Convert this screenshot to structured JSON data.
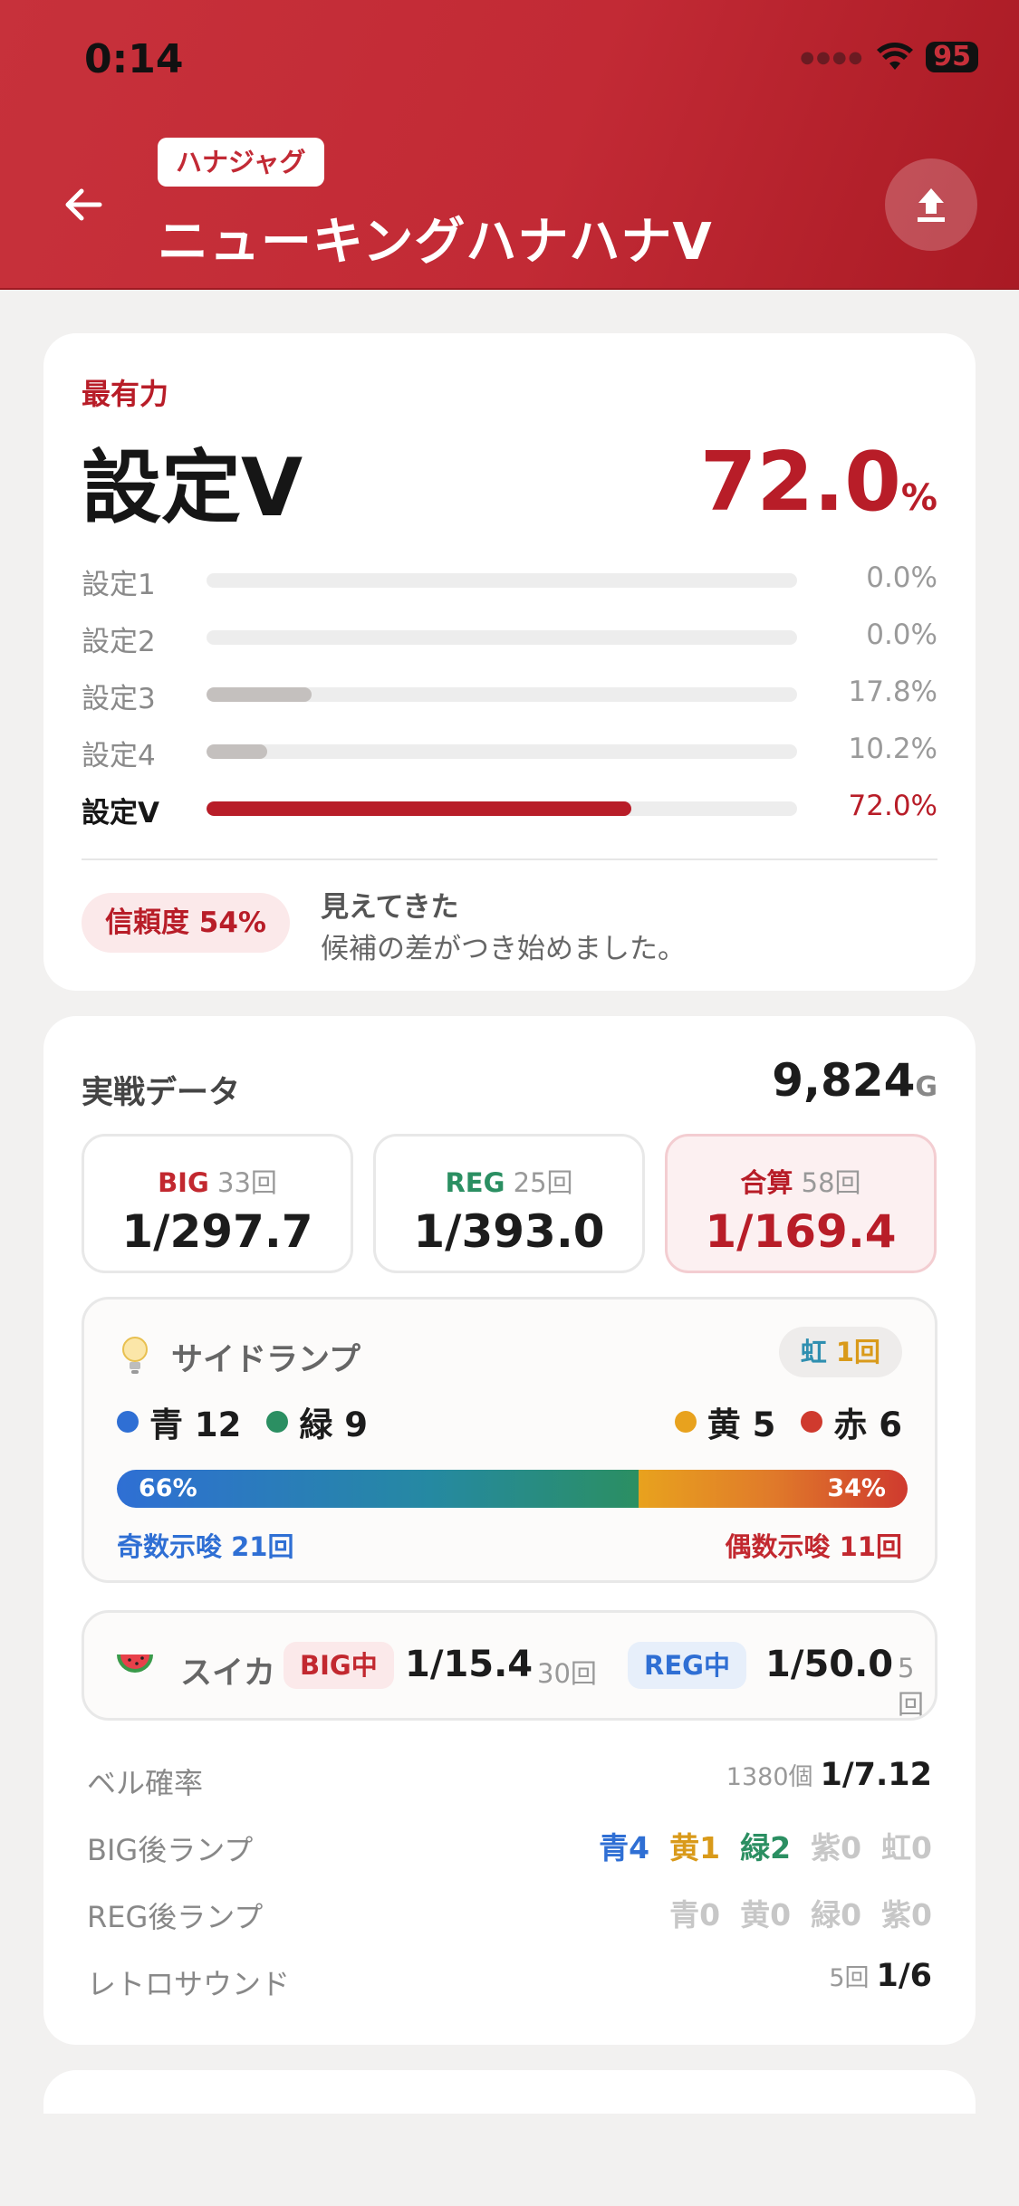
{
  "status": {
    "time": "0:14",
    "battery": "95"
  },
  "header": {
    "tag": "ハナジャグ",
    "title": "ニューキングハナハナV"
  },
  "estimate": {
    "label": "最有力",
    "top_setting": "設定V",
    "top_percent": "72.0",
    "percent_unit": "%",
    "settings": [
      {
        "label": "設定1",
        "percent": 0.0,
        "display": "0.0%"
      },
      {
        "label": "設定2",
        "percent": 0.0,
        "display": "0.0%"
      },
      {
        "label": "設定3",
        "percent": 17.8,
        "display": "17.8%"
      },
      {
        "label": "設定4",
        "percent": 10.2,
        "display": "10.2%"
      },
      {
        "label": "設定V",
        "percent": 72.0,
        "display": "72.0%"
      }
    ],
    "reliability_badge": "信頼度 54%",
    "reliability_title": "見えてきた",
    "reliability_desc": "候補の差がつき始めました。"
  },
  "stats": {
    "section_title": "実戦データ",
    "games": "9,824",
    "games_unit": "G",
    "big": {
      "name": "BIG",
      "count": "33回",
      "value": "1/297.7"
    },
    "reg": {
      "name": "REG",
      "count": "25回",
      "value": "1/393.0"
    },
    "total": {
      "name": "合算",
      "count": "58回",
      "value": "1/169.4"
    }
  },
  "side_lamp": {
    "title": "サイドランプ",
    "rainbow_label": "虹",
    "rainbow_count": "1回",
    "blue": "青 12",
    "green": "緑 9",
    "yellow": "黄 5",
    "red": "赤 6",
    "odd_percent": "66%",
    "even_percent": "34%",
    "odd_hint": "奇数示唆 21回",
    "even_hint": "偶数示唆 11回",
    "colors": {
      "blue": "#2f6fd4",
      "green": "#2b8f62",
      "yellow": "#e8a21e",
      "red": "#cf3a2e"
    }
  },
  "suika": {
    "title": "スイカ",
    "big_label": "BIG中",
    "big_value": "1/15.4",
    "big_count": "30回",
    "reg_label": "REG中",
    "reg_value": "1/50.0",
    "reg_count": "5回"
  },
  "bell": {
    "label": "ベル確率",
    "count": "1380個",
    "value": "1/7.12"
  },
  "big_after_lamp": {
    "label": "BIG後ランプ",
    "blue": "青4",
    "yellow": "黄1",
    "green": "緑2",
    "purple": "紫0",
    "rainbow": "虹0"
  },
  "reg_after_lamp": {
    "label": "REG後ランプ",
    "blue": "青0",
    "yellow": "黄0",
    "green": "緑0",
    "purple": "紫0"
  },
  "retro": {
    "label": "レトロサウンド",
    "count": "5回",
    "value": "1/6"
  }
}
